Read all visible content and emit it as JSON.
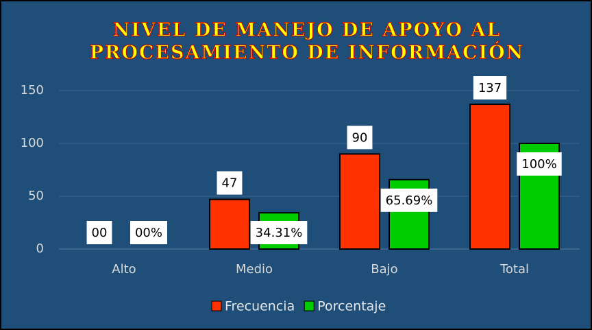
{
  "chart_data": {
    "type": "bar",
    "title": [
      "NIVEL DE MANEJO DE APOYO AL",
      "PROCESAMIENTO DE INFORMACIÓN"
    ],
    "categories": [
      "Alto",
      "Medio",
      "Bajo",
      "Total"
    ],
    "series": [
      {
        "name": "Frecuencia",
        "color": "#ff3300",
        "values": [
          0,
          47,
          90,
          137
        ],
        "value_labels": [
          "00",
          "47",
          "90",
          "137"
        ]
      },
      {
        "name": "Porcentaje",
        "color": "#00cc00",
        "values": [
          0,
          34.31,
          65.69,
          100
        ],
        "value_labels": [
          "00%",
          "34.31%",
          "65.69%",
          "100%"
        ]
      }
    ],
    "ylim": [
      0,
      150
    ],
    "yticks": [
      0,
      50,
      100,
      150
    ],
    "grid": true,
    "legend": "bottom"
  }
}
